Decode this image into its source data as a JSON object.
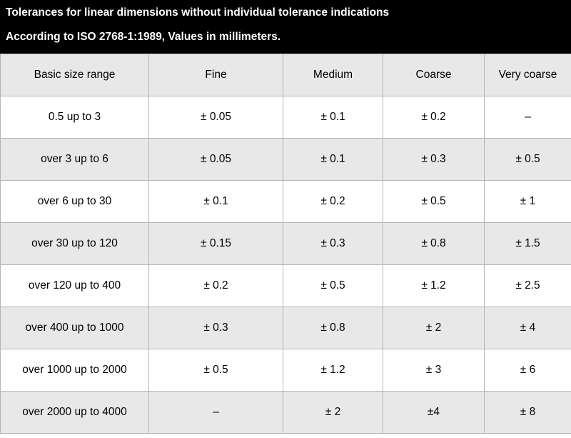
{
  "header": {
    "title": "Tolerances for linear dimensions without individual tolerance indications",
    "subtitle": "According to ISO 2768-1:1989, Values in millimeters."
  },
  "table": {
    "columns": [
      "Basic size range",
      "Fine",
      "Medium",
      "Coarse",
      "Very coarse"
    ],
    "rows": [
      [
        "0.5 up to 3",
        "± 0.05",
        "± 0.1",
        "± 0.2",
        "–"
      ],
      [
        "over 3 up to 6",
        "± 0.05",
        "± 0.1",
        "± 0.3",
        "± 0.5"
      ],
      [
        "over 6 up to 30",
        "± 0.1",
        "± 0.2",
        "± 0.5",
        "± 1"
      ],
      [
        "over 30 up to 120",
        "± 0.15",
        "± 0.3",
        "± 0.8",
        "± 1.5"
      ],
      [
        "over 120 up to 400",
        "± 0.2",
        "± 0.5",
        "± 1.2",
        "± 2.5"
      ],
      [
        "over 400 up to 1000",
        "± 0.3",
        "± 0.8",
        "± 2",
        "± 4"
      ],
      [
        "over 1000 up to 2000",
        "± 0.5",
        "± 1.2",
        "± 3",
        "± 6"
      ],
      [
        "over 2000 up to 4000",
        "–",
        "± 2",
        "±4",
        "± 8"
      ]
    ]
  }
}
